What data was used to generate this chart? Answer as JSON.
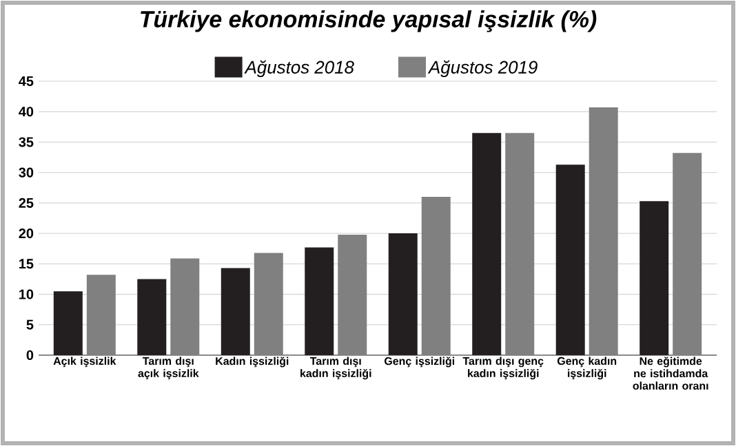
{
  "chart_data": {
    "type": "bar",
    "title": "Türkiye ekonomisinde yapısal işsizlik (%)",
    "categories": [
      "Açık işsizlik",
      "Tarım dışı açık işsizlik",
      "Kadın işsizliği",
      "Tarım dışı kadın işsizliği",
      "Genç işsizliği",
      "Tarım dışı genç kadın işsizliği",
      "Genç kadın işsizliği",
      "Ne eğitimde ne istihdamda olanların oranı"
    ],
    "series": [
      {
        "name": "Ağustos 2018",
        "color": "#231f20",
        "values": [
          10.5,
          12.5,
          14.3,
          17.7,
          20.0,
          36.5,
          31.3,
          25.3
        ]
      },
      {
        "name": "Ağustos 2019",
        "color": "#808080",
        "values": [
          13.2,
          15.9,
          16.8,
          19.8,
          26.0,
          36.5,
          40.7,
          33.2
        ]
      }
    ],
    "ylim": [
      0,
      45
    ],
    "yticks": [
      0,
      5,
      10,
      15,
      20,
      25,
      30,
      35,
      40,
      45
    ],
    "grid": "y",
    "legend": "top"
  }
}
